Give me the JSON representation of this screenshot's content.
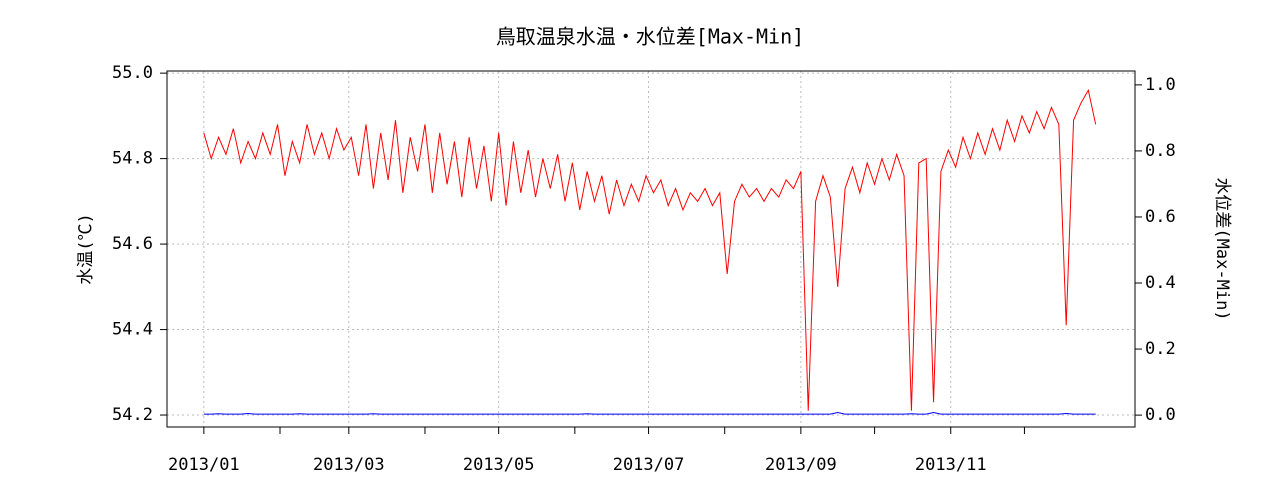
{
  "chart_data": {
    "type": "line",
    "title": "鳥取温泉水温・水位差[Max-Min]",
    "ylabel": "水温(℃)",
    "y2label": "水位差(Max-Min)",
    "x": [
      0,
      3,
      6,
      9,
      12,
      15,
      18,
      21,
      24,
      27,
      30,
      33,
      36,
      39,
      42,
      45,
      48,
      51,
      54,
      57,
      60,
      63,
      66,
      69,
      72,
      75,
      78,
      81,
      84,
      87,
      90,
      93,
      96,
      99,
      102,
      105,
      108,
      111,
      114,
      117,
      120,
      123,
      126,
      129,
      132,
      135,
      138,
      141,
      144,
      147,
      150,
      153,
      156,
      159,
      162,
      165,
      168,
      171,
      174,
      177,
      180,
      183,
      186,
      189,
      192,
      195,
      198,
      201,
      204,
      207,
      210,
      213,
      216,
      219,
      222,
      225,
      228,
      231,
      234,
      237,
      240,
      243,
      246,
      249,
      252,
      255,
      258,
      261,
      264,
      267,
      270,
      273,
      276,
      279,
      282,
      285,
      288,
      291,
      294,
      297,
      300,
      303,
      306,
      309,
      312,
      315,
      318,
      321,
      324,
      327,
      330,
      333,
      336,
      339,
      342,
      345,
      348,
      351,
      354,
      357,
      360,
      363
    ],
    "series": [
      {
        "name": "水温",
        "color": "#ff0000",
        "values": [
          54.86,
          54.8,
          54.85,
          54.81,
          54.87,
          54.79,
          54.84,
          54.8,
          54.86,
          54.81,
          54.88,
          54.76,
          54.84,
          54.79,
          54.88,
          54.81,
          54.86,
          54.8,
          54.87,
          54.82,
          54.85,
          54.76,
          54.88,
          54.73,
          54.86,
          54.75,
          54.89,
          54.72,
          54.85,
          54.77,
          54.88,
          54.72,
          54.86,
          54.74,
          54.84,
          54.71,
          54.85,
          54.73,
          54.83,
          54.7,
          54.86,
          54.69,
          54.84,
          54.72,
          54.82,
          54.71,
          54.8,
          54.73,
          54.81,
          54.7,
          54.79,
          54.68,
          54.77,
          54.7,
          54.76,
          54.67,
          54.75,
          54.69,
          54.74,
          54.7,
          54.76,
          54.72,
          54.75,
          54.69,
          54.73,
          54.68,
          54.72,
          54.7,
          54.73,
          54.69,
          54.72,
          54.53,
          54.7,
          54.74,
          54.71,
          54.73,
          54.7,
          54.73,
          54.71,
          54.75,
          54.73,
          54.77,
          54.21,
          54.7,
          54.76,
          54.71,
          54.5,
          54.73,
          54.78,
          54.72,
          54.79,
          54.74,
          54.8,
          54.75,
          54.81,
          54.76,
          54.21,
          54.79,
          54.8,
          54.23,
          54.77,
          54.82,
          54.78,
          54.85,
          54.8,
          54.86,
          54.81,
          54.87,
          54.82,
          54.89,
          54.84,
          54.9,
          54.86,
          54.91,
          54.87,
          54.92,
          54.88,
          54.41,
          54.89,
          54.93,
          54.96,
          54.88
        ]
      },
      {
        "name": "水位差",
        "color": "#0000ff",
        "axis": "y2",
        "values": [
          0.003,
          0.003,
          0.004,
          0.003,
          0.003,
          0.003,
          0.005,
          0.003,
          0.003,
          0.003,
          0.003,
          0.003,
          0.003,
          0.004,
          0.003,
          0.003,
          0.003,
          0.003,
          0.003,
          0.003,
          0.003,
          0.003,
          0.003,
          0.004,
          0.003,
          0.003,
          0.003,
          0.003,
          0.003,
          0.003,
          0.003,
          0.003,
          0.003,
          0.003,
          0.003,
          0.003,
          0.003,
          0.003,
          0.003,
          0.003,
          0.003,
          0.003,
          0.003,
          0.003,
          0.003,
          0.003,
          0.003,
          0.003,
          0.003,
          0.003,
          0.003,
          0.003,
          0.004,
          0.003,
          0.003,
          0.003,
          0.003,
          0.003,
          0.003,
          0.003,
          0.003,
          0.003,
          0.003,
          0.003,
          0.003,
          0.003,
          0.003,
          0.003,
          0.003,
          0.003,
          0.003,
          0.003,
          0.003,
          0.003,
          0.003,
          0.003,
          0.003,
          0.003,
          0.003,
          0.003,
          0.003,
          0.003,
          0.003,
          0.003,
          0.003,
          0.003,
          0.008,
          0.003,
          0.003,
          0.003,
          0.003,
          0.003,
          0.003,
          0.003,
          0.003,
          0.003,
          0.004,
          0.003,
          0.003,
          0.008,
          0.003,
          0.003,
          0.003,
          0.003,
          0.003,
          0.003,
          0.003,
          0.003,
          0.003,
          0.003,
          0.003,
          0.003,
          0.003,
          0.003,
          0.003,
          0.003,
          0.003,
          0.005,
          0.003,
          0.003,
          0.003,
          0.003
        ]
      }
    ],
    "xlim": [
      -15,
      379
    ],
    "xticks": [
      {
        "value": 0,
        "label": "2013/01"
      },
      {
        "value": 59,
        "label": "2013/03"
      },
      {
        "value": 120,
        "label": "2013/05"
      },
      {
        "value": 181,
        "label": "2013/07"
      },
      {
        "value": 243,
        "label": "2013/09"
      },
      {
        "value": 304,
        "label": "2013/11"
      }
    ],
    "xminorticks": [
      31,
      90,
      151,
      212,
      273,
      334
    ],
    "ylim": [
      54.172,
      55.005
    ],
    "yticks": [
      54.2,
      54.4,
      54.6,
      54.8,
      {
        "value": 55,
        "label": "55.0"
      }
    ],
    "y2lim": [
      -0.036,
      1.042
    ],
    "y2ticks": [
      {
        "value": 0,
        "label": "0.0"
      },
      0.2,
      0.4,
      0.6,
      0.8,
      {
        "value": 1,
        "label": "1.0"
      }
    ],
    "grid": true
  }
}
